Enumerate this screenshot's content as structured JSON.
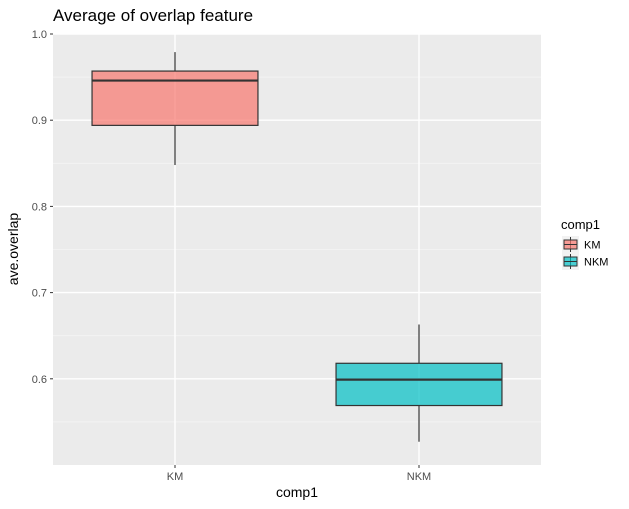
{
  "chart_data": {
    "type": "boxplot",
    "title": "Average of overlap feature",
    "xlabel": "comp1",
    "ylabel": "ave.overlap",
    "categories": [
      "KM",
      "NKM"
    ],
    "ylim": [
      0.5,
      1.0
    ],
    "yticks": [
      "0.6",
      "0.7",
      "0.8",
      "0.9",
      "1.0"
    ],
    "grid": true,
    "legend": {
      "title": "comp1",
      "position": "right",
      "entries": [
        "KM",
        "NKM"
      ]
    },
    "series": [
      {
        "category": "KM",
        "min": 0.848,
        "q1": 0.894,
        "median": 0.946,
        "q3": 0.957,
        "max": 0.979,
        "color": "#F8766D"
      },
      {
        "category": "NKM",
        "min": 0.527,
        "q1": 0.569,
        "median": 0.599,
        "q3": 0.618,
        "max": 0.663,
        "color": "#00BFC4"
      }
    ]
  }
}
